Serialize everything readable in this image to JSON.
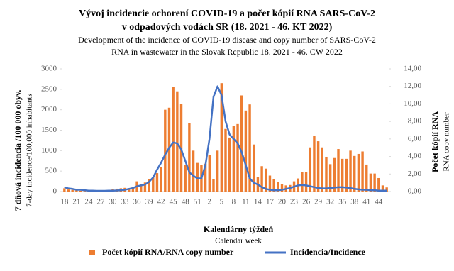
{
  "chart_data": {
    "type": "bar_line",
    "title": [
      "Vývoj incidencie ochorení COVID-19 a počet kópií RNA  SARS-CoV-2",
      "v odpadových vodách SR (18. 2021 - 46. KT 2022)"
    ],
    "subtitle": [
      "Development of the incidence of COVID-19 disease and copy number of SARS-CoV-2",
      "RNA in wastewater in the Slovak Republic 18. 2021 - 46. CW 2022"
    ],
    "ylabel": [
      "7 dňová incidencia /100 000 obyv.",
      "7-day incidence/100,000 inhabitants"
    ],
    "y2label": [
      "Počet kópií RNA",
      "RNA copy number"
    ],
    "xlabel": [
      "Kalendárny týždeň",
      "Calendar week"
    ],
    "categories": [
      "18",
      null,
      null,
      "21",
      null,
      null,
      "24",
      null,
      null,
      "27",
      null,
      null,
      "30",
      null,
      null,
      "33",
      null,
      null,
      "36",
      null,
      null,
      "39",
      null,
      null,
      "42",
      null,
      null,
      "45",
      null,
      null,
      "48",
      null,
      null,
      "51",
      null,
      null,
      "2",
      null,
      null,
      "5",
      null,
      null,
      "8",
      null,
      null,
      "11",
      null,
      null,
      "14",
      null,
      null,
      "17",
      null,
      null,
      "20",
      null,
      null,
      "23",
      null,
      null,
      "26",
      null,
      null,
      "29",
      null,
      null,
      "32",
      null,
      null,
      "35",
      null,
      null,
      "38",
      null,
      null,
      "41",
      null,
      null,
      "44",
      null,
      null
    ],
    "series": [
      {
        "name": "Počet kópií RNA/RNA copy number",
        "color": "#ed7d31",
        "axis": "y",
        "values": [
          80,
          50,
          40,
          30,
          20,
          10,
          10,
          10,
          10,
          10,
          20,
          30,
          60,
          70,
          80,
          90,
          80,
          120,
          250,
          180,
          220,
          300,
          350,
          450,
          600,
          2000,
          2050,
          2550,
          2450,
          2150,
          650,
          1680,
          1000,
          700,
          650,
          680,
          900,
          300,
          1000,
          2650,
          1530,
          1320,
          1600,
          1650,
          2350,
          1980,
          2130,
          1150,
          350,
          620,
          560,
          390,
          300,
          230,
          180,
          150,
          160,
          250,
          320,
          480,
          470,
          1080,
          1370,
          1230,
          1080,
          850,
          670,
          820,
          1040,
          800,
          800,
          1000,
          870,
          920,
          980,
          660,
          440,
          440,
          330,
          150,
          100
        ]
      },
      {
        "name": "Incidencia/Incidence",
        "color": "#4472c4",
        "axis": "y2",
        "values": [
          0.5,
          0.35,
          0.3,
          0.2,
          0.2,
          0.15,
          0.1,
          0.1,
          0.08,
          0.08,
          0.08,
          0.1,
          0.1,
          0.12,
          0.15,
          0.2,
          0.3,
          0.4,
          0.6,
          0.7,
          0.8,
          1.1,
          1.6,
          2.5,
          3.3,
          4.2,
          5.0,
          5.6,
          5.5,
          4.8,
          3.5,
          2.2,
          1.8,
          1.5,
          1.5,
          3.0,
          6.0,
          10.8,
          12.0,
          11.0,
          8.0,
          6.5,
          6.0,
          5.5,
          4.5,
          3.0,
          1.5,
          1.0,
          0.8,
          0.5,
          0.3,
          0.2,
          0.15,
          0.15,
          0.2,
          0.3,
          0.4,
          0.55,
          0.7,
          0.75,
          0.7,
          0.6,
          0.5,
          0.4,
          0.35,
          0.35,
          0.4,
          0.45,
          0.5,
          0.5,
          0.45,
          0.4,
          0.3,
          0.25,
          0.2,
          0.2,
          0.15,
          0.15,
          0.1,
          0.1,
          0.1
        ]
      }
    ],
    "ylim": [
      0,
      3000
    ],
    "yticks": [
      0,
      500,
      1000,
      1500,
      2000,
      2500,
      3000
    ],
    "y2lim": [
      0,
      14
    ],
    "y2ticks": [
      {
        "value": 0,
        "label": "0,00"
      },
      {
        "value": 2,
        "label": "2,00"
      },
      {
        "value": 4,
        "label": "4,00"
      },
      {
        "value": 6,
        "label": "6,00"
      },
      {
        "value": 8,
        "label": "8,00"
      },
      {
        "value": 10,
        "label": "10,00"
      },
      {
        "value": 12,
        "label": "12,00"
      },
      {
        "value": 14,
        "label": "14,00"
      }
    ],
    "grid": false,
    "legend": "bottom"
  }
}
